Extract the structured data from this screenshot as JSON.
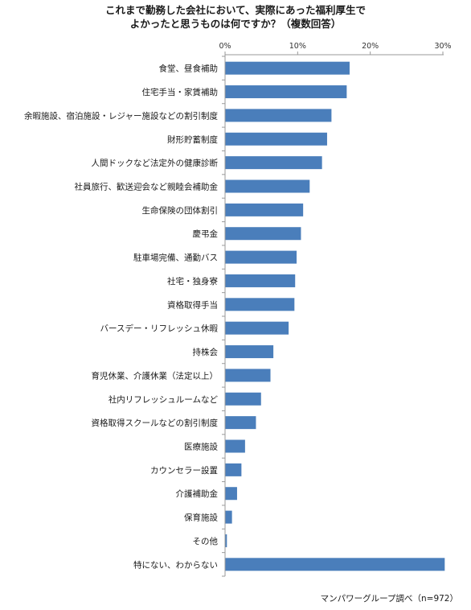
{
  "chart_data": {
    "type": "bar",
    "orientation": "horizontal",
    "title_lines": [
      "これまで勤務した会社において、実際にあった福利厚生で",
      "よかったと思うものは何ですか？（複数回答）"
    ],
    "xlim": [
      0,
      30
    ],
    "x_ticks": [
      "0%",
      "10%",
      "20%",
      "30%"
    ],
    "x_tick_values": [
      0,
      10,
      20,
      30
    ],
    "gridlines": false,
    "bar_color": "#4a7ebb",
    "categories": [
      "食堂、昼食補助",
      "住宅手当・家賃補助",
      "余暇施設、宿泊施設・レジャー施設などの割引制度",
      "財形貯蓄制度",
      "人間ドックなど法定外の健康診断",
      "社員旅行、歓送迎会など親睦会補助金",
      "生命保険の団体割引",
      "慶弔金",
      "駐車場完備、通勤バス",
      "社宅・独身寮",
      "資格取得手当",
      "バースデー・リフレッシュ休暇",
      "持株会",
      "育児休業、介護休業（法定以上）",
      "社内リフレッシュルームなど",
      "資格取得スクールなどの割引制度",
      "医療施設",
      "カウンセラー設置",
      "介護補助金",
      "保育施設",
      "その他",
      "特にない、わからない"
    ],
    "values": [
      17.1,
      16.7,
      14.6,
      14.0,
      13.3,
      11.6,
      10.7,
      10.4,
      9.8,
      9.6,
      9.5,
      8.7,
      6.6,
      6.2,
      4.9,
      4.2,
      2.7,
      2.2,
      1.6,
      0.9,
      0.2,
      30.2
    ]
  },
  "source_note": "マンパワーグループ調べ（n=972）"
}
